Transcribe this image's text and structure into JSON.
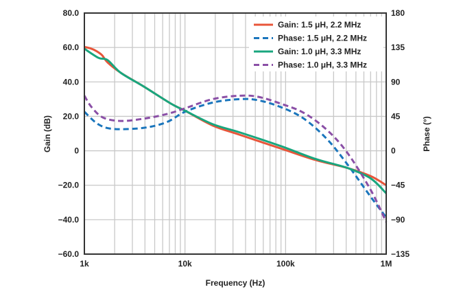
{
  "chart_data": {
    "type": "line",
    "title": "",
    "xlabel": "Frequency (Hz)",
    "ylabel": "Gain (dB)",
    "y2label": "Phase (°)",
    "xscale": "log",
    "xlim": [
      1000,
      1000000
    ],
    "ylim": [
      -60,
      80
    ],
    "y2lim": [
      -135,
      180
    ],
    "grid": true,
    "legend_position": "top-right",
    "x_ticks": [
      {
        "value": 1000,
        "label": "1k"
      },
      {
        "value": 10000,
        "label": "10k"
      },
      {
        "value": 100000,
        "label": "100k"
      },
      {
        "value": 1000000,
        "label": "1M"
      }
    ],
    "y_ticks": [
      {
        "value": 80,
        "label": "80.0"
      },
      {
        "value": 60,
        "label": "60.0"
      },
      {
        "value": 40,
        "label": "40.0"
      },
      {
        "value": 20,
        "label": "20.0"
      },
      {
        "value": 0,
        "label": "0"
      },
      {
        "value": -20,
        "label": "−20.0"
      },
      {
        "value": -40,
        "label": "−40.0"
      },
      {
        "value": -60,
        "label": "−60.0"
      }
    ],
    "y2_ticks": [
      {
        "value": 180,
        "label": "180"
      },
      {
        "value": 135,
        "label": "135"
      },
      {
        "value": 90,
        "label": "90"
      },
      {
        "value": 45,
        "label": "45"
      },
      {
        "value": 0,
        "label": "0"
      },
      {
        "value": -45,
        "label": "−45"
      },
      {
        "value": -90,
        "label": "−90"
      },
      {
        "value": -135,
        "label": "−135"
      }
    ],
    "series": [
      {
        "name": "Gain: 1.5 μH, 2.2 MHz",
        "axis": "left",
        "color": "#e8553a",
        "dash": false,
        "x": [
          1000,
          1150,
          1310,
          1500,
          1700,
          2300,
          3900,
          7300,
          10000,
          18800,
          35000,
          90000,
          197000,
          413000,
          700000,
          1000000
        ],
        "y": [
          60.3,
          59.5,
          58,
          55.5,
          51.3,
          45.3,
          37.3,
          27.3,
          23.3,
          14.7,
          9.3,
          1.3,
          -5.3,
          -10,
          -14.7,
          -20
        ]
      },
      {
        "name": "Phase: 1.5 μH, 2.2 MHz",
        "axis": "right",
        "color": "#1a75bc",
        "dash": true,
        "x": [
          1000,
          1380,
          1980,
          3900,
          6600,
          10000,
          18800,
          35000,
          53500,
          90000,
          152000,
          259000,
          413000,
          700000,
          1000000
        ],
        "y": [
          51,
          34.5,
          28.5,
          30,
          37.5,
          51,
          63,
          67.5,
          66,
          57,
          42,
          15,
          -18,
          -60,
          -87
        ]
      },
      {
        "name": "Gain: 1.0 μH, 3.3 MHz",
        "axis": "left",
        "color": "#19a67e",
        "dash": false,
        "x": [
          1000,
          1380,
          1700,
          2300,
          3900,
          7300,
          10000,
          18800,
          35000,
          90000,
          197000,
          413000,
          700000,
          1000000
        ],
        "y": [
          59.3,
          54,
          52.7,
          45.3,
          37.3,
          27.3,
          23.3,
          15.5,
          10.7,
          2.7,
          -4.7,
          -10,
          -16,
          -24.7
        ]
      },
      {
        "name": "Phase: 1.0 μH, 3.3 MHz",
        "axis": "right",
        "color": "#8a4fa6",
        "dash": true,
        "x": [
          1000,
          1180,
          1530,
          2300,
          3900,
          6600,
          10000,
          18800,
          35000,
          53500,
          90000,
          152000,
          259000,
          413000,
          700000,
          1000000
        ],
        "y": [
          72,
          57,
          43.5,
          39,
          42,
          48,
          55.5,
          67.5,
          72,
          70.5,
          61.5,
          49.5,
          27,
          -3,
          -51,
          -93
        ]
      }
    ]
  }
}
